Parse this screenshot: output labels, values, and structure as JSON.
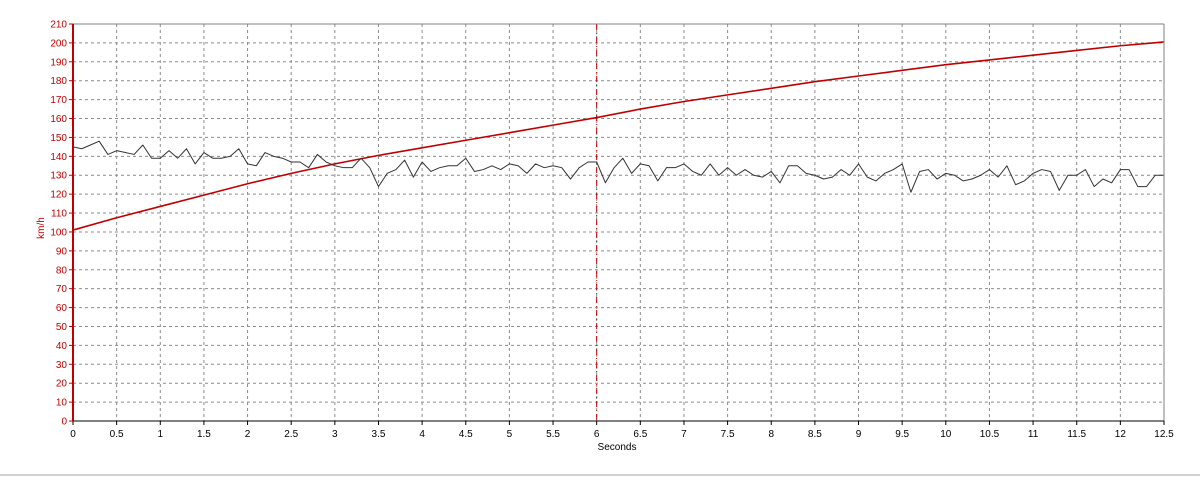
{
  "chart_data": {
    "type": "line",
    "title": "",
    "xlabel": "Seconds",
    "ylabel": "km/h",
    "xlim": [
      0,
      12.5
    ],
    "ylim": [
      0,
      210
    ],
    "x_ticks": [
      "0",
      "0.5",
      "1",
      "1.5",
      "2",
      "2.5",
      "3",
      "3.5",
      "4",
      "4.5",
      "5",
      "5.5",
      "6",
      "6.5",
      "7",
      "7.5",
      "8",
      "8.5",
      "9",
      "9.5",
      "10",
      "10.5",
      "11",
      "11.5",
      "12",
      "12.5"
    ],
    "y_ticks": [
      "0",
      "10",
      "20",
      "30",
      "40",
      "50",
      "60",
      "70",
      "80",
      "90",
      "100",
      "110",
      "120",
      "130",
      "140",
      "150",
      "160",
      "170",
      "180",
      "190",
      "200",
      "210"
    ],
    "grid": true,
    "cursor_x": 6,
    "series": [
      {
        "color": "#c00000",
        "x": [
          0,
          0.5,
          1,
          1.5,
          2,
          2.5,
          3,
          3.5,
          4,
          4.5,
          5,
          5.5,
          6,
          6.5,
          7,
          7.5,
          8,
          8.5,
          9,
          9.5,
          10,
          10.5,
          11,
          11.5,
          12,
          12.5
        ],
        "values": [
          101,
          107.5,
          113.5,
          119.5,
          125.5,
          131,
          136,
          140.5,
          144.5,
          148.5,
          152.5,
          156.5,
          160.5,
          165,
          169,
          172.5,
          176,
          179.5,
          182.5,
          185.5,
          188.5,
          191,
          193.5,
          196,
          198.5,
          200.5
        ]
      },
      {
        "color": "#333333",
        "x": [
          0,
          0.1,
          0.2,
          0.3,
          0.4,
          0.5,
          0.6,
          0.7,
          0.8,
          0.9,
          1,
          1.1,
          1.2,
          1.3,
          1.4,
          1.5,
          1.6,
          1.7,
          1.8,
          1.9,
          2,
          2.1,
          2.2,
          2.3,
          2.4,
          2.5,
          2.6,
          2.7,
          2.8,
          2.9,
          3,
          3.1,
          3.2,
          3.3,
          3.4,
          3.5,
          3.6,
          3.7,
          3.8,
          3.9,
          4,
          4.1,
          4.2,
          4.3,
          4.4,
          4.5,
          4.6,
          4.7,
          4.8,
          4.9,
          5,
          5.1,
          5.2,
          5.3,
          5.4,
          5.5,
          5.6,
          5.7,
          5.8,
          5.9,
          6,
          6.1,
          6.2,
          6.3,
          6.4,
          6.5,
          6.6,
          6.7,
          6.8,
          6.9,
          7,
          7.1,
          7.2,
          7.3,
          7.4,
          7.5,
          7.6,
          7.7,
          7.8,
          7.9,
          8,
          8.1,
          8.2,
          8.3,
          8.4,
          8.5,
          8.6,
          8.7,
          8.8,
          8.9,
          9,
          9.1,
          9.2,
          9.3,
          9.4,
          9.5,
          9.6,
          9.7,
          9.8,
          9.9,
          10,
          10.1,
          10.2,
          10.3,
          10.4,
          10.5,
          10.6,
          10.7,
          10.8,
          10.9,
          11,
          11.1,
          11.2,
          11.3,
          11.4,
          11.5,
          11.6,
          11.7,
          11.8,
          11.9,
          12,
          12.1,
          12.2,
          12.3,
          12.4,
          12.5
        ],
        "values": [
          145,
          144,
          146,
          148,
          141,
          143,
          142,
          141,
          146,
          139,
          139,
          143,
          139,
          144,
          136,
          142,
          139,
          139,
          140,
          144,
          136,
          135,
          142,
          140,
          139,
          137,
          137,
          134,
          141,
          137,
          135,
          134,
          134,
          139,
          134,
          124,
          131,
          133,
          138,
          129,
          137,
          132,
          134,
          135,
          135,
          139,
          132,
          133,
          135,
          133,
          136,
          135,
          131,
          136,
          134,
          135,
          134,
          128,
          134,
          137,
          137,
          126,
          134,
          139,
          131,
          136,
          135,
          127,
          134,
          134,
          136,
          132,
          130,
          136,
          130,
          134,
          130,
          133,
          130,
          129,
          132,
          126,
          135,
          135,
          131,
          130,
          128,
          129,
          133,
          130,
          136,
          129,
          127,
          131,
          133,
          136,
          121,
          132,
          133,
          128,
          131,
          130,
          127,
          128,
          130,
          133,
          129,
          135,
          125,
          127,
          131,
          133,
          132,
          122,
          130,
          130,
          133,
          124,
          128,
          126,
          133,
          133,
          124,
          124,
          130,
          130
        ]
      }
    ]
  }
}
